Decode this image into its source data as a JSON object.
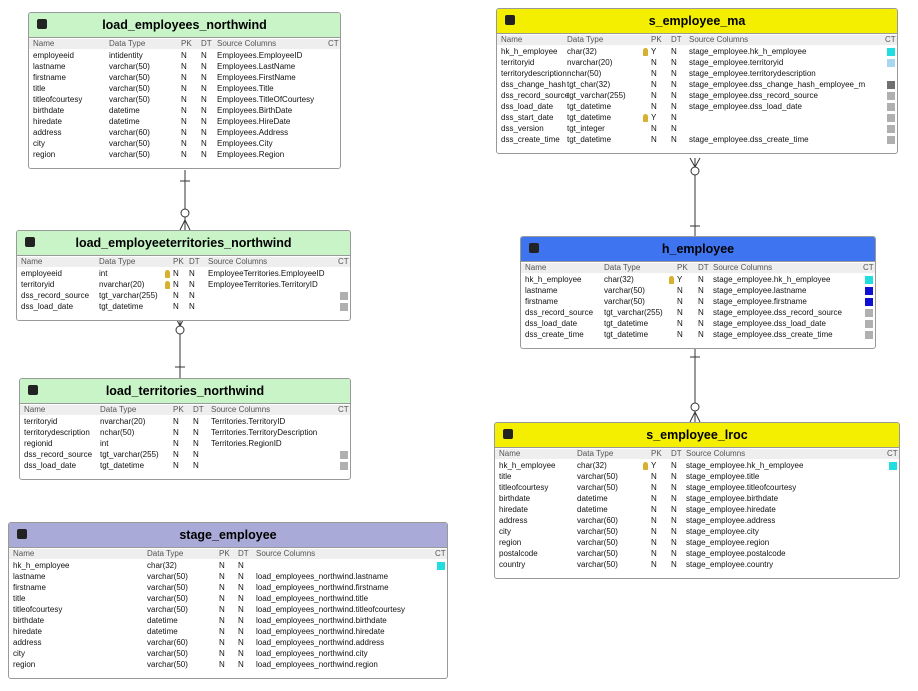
{
  "headers": [
    "Name",
    "Data Type",
    "PK",
    "DT",
    "Source Columns",
    "CT"
  ],
  "tables": [
    {
      "title": "load_employees_northwind",
      "color": "#c8f4c8",
      "rows": [
        {
          "name": "employeeid",
          "type": "intidentity",
          "pk": "N",
          "dt": "N",
          "source": "Employees.EmployeeID"
        },
        {
          "name": "lastname",
          "type": "varchar(50)",
          "pk": "N",
          "dt": "N",
          "source": "Employees.LastName"
        },
        {
          "name": "firstname",
          "type": "varchar(50)",
          "pk": "N",
          "dt": "N",
          "source": "Employees.FirstName"
        },
        {
          "name": "title",
          "type": "varchar(50)",
          "pk": "N",
          "dt": "N",
          "source": "Employees.Title"
        },
        {
          "name": "titleofcourtesy",
          "type": "varchar(50)",
          "pk": "N",
          "dt": "N",
          "source": "Employees.TitleOfCourtesy"
        },
        {
          "name": "birthdate",
          "type": "datetime",
          "pk": "N",
          "dt": "N",
          "source": "Employees.BirthDate"
        },
        {
          "name": "hiredate",
          "type": "datetime",
          "pk": "N",
          "dt": "N",
          "source": "Employees.HireDate"
        },
        {
          "name": "address",
          "type": "varchar(60)",
          "pk": "N",
          "dt": "N",
          "source": "Employees.Address"
        },
        {
          "name": "city",
          "type": "varchar(50)",
          "pk": "N",
          "dt": "N",
          "source": "Employees.City"
        },
        {
          "name": "region",
          "type": "varchar(50)",
          "pk": "N",
          "dt": "N",
          "source": "Employees.Region"
        }
      ]
    },
    {
      "title": "load_employeeterritories_northwind",
      "color": "#c8f4c8",
      "rows": [
        {
          "name": "employeeid",
          "type": "int",
          "pk": "N",
          "dt": "N",
          "source": "EmployeeTerritories.EmployeeID",
          "key": true
        },
        {
          "name": "territoryid",
          "type": "nvarchar(20)",
          "pk": "N",
          "dt": "N",
          "source": "EmployeeTerritories.TerritoryID",
          "key": true
        },
        {
          "name": "dss_record_source",
          "type": "tgt_varchar(255)",
          "pk": "N",
          "dt": "N",
          "ct": "#b0b0b0"
        },
        {
          "name": "dss_load_date",
          "type": "tgt_datetime",
          "pk": "N",
          "dt": "N",
          "ct": "#b0b0b0"
        }
      ]
    },
    {
      "title": "load_territories_northwind",
      "color": "#c8f4c8",
      "rows": [
        {
          "name": "territoryid",
          "type": "nvarchar(20)",
          "pk": "N",
          "dt": "N",
          "source": "Territories.TerritoryID"
        },
        {
          "name": "territorydescription",
          "type": "nchar(50)",
          "pk": "N",
          "dt": "N",
          "source": "Territories.TerritoryDescription"
        },
        {
          "name": "regionid",
          "type": "int",
          "pk": "N",
          "dt": "N",
          "source": "Territories.RegionID"
        },
        {
          "name": "dss_record_source",
          "type": "tgt_varchar(255)",
          "pk": "N",
          "dt": "N",
          "ct": "#b0b0b0"
        },
        {
          "name": "dss_load_date",
          "type": "tgt_datetime",
          "pk": "N",
          "dt": "N",
          "ct": "#b0b0b0"
        }
      ]
    },
    {
      "title": "stage_employee",
      "color": "#aaaad8",
      "rows": [
        {
          "name": "hk_h_employee",
          "type": "char(32)",
          "pk": "N",
          "dt": "N",
          "ct": "#22dde0"
        },
        {
          "name": "lastname",
          "type": "varchar(50)",
          "pk": "N",
          "dt": "N",
          "source": "load_employees_northwind.lastname"
        },
        {
          "name": "firstname",
          "type": "varchar(50)",
          "pk": "N",
          "dt": "N",
          "source": "load_employees_northwind.firstname"
        },
        {
          "name": "title",
          "type": "varchar(50)",
          "pk": "N",
          "dt": "N",
          "source": "load_employees_northwind.title"
        },
        {
          "name": "titleofcourtesy",
          "type": "varchar(50)",
          "pk": "N",
          "dt": "N",
          "source": "load_employees_northwind.titleofcourtesy"
        },
        {
          "name": "birthdate",
          "type": "datetime",
          "pk": "N",
          "dt": "N",
          "source": "load_employees_northwind.birthdate"
        },
        {
          "name": "hiredate",
          "type": "datetime",
          "pk": "N",
          "dt": "N",
          "source": "load_employees_northwind.hiredate"
        },
        {
          "name": "address",
          "type": "varchar(60)",
          "pk": "N",
          "dt": "N",
          "source": "load_employees_northwind.address"
        },
        {
          "name": "city",
          "type": "varchar(50)",
          "pk": "N",
          "dt": "N",
          "source": "load_employees_northwind.city"
        },
        {
          "name": "region",
          "type": "varchar(50)",
          "pk": "N",
          "dt": "N",
          "source": "load_employees_northwind.region"
        }
      ]
    },
    {
      "title": "s_employee_ma",
      "color": "#f4ee00",
      "rows": [
        {
          "name": "hk_h_employee",
          "type": "char(32)",
          "pk": "Y",
          "dt": "N",
          "source": "stage_employee.hk_h_employee",
          "key": true,
          "ct": "#22dde0"
        },
        {
          "name": "territoryid",
          "type": "nvarchar(20)",
          "pk": "N",
          "dt": "N",
          "source": "stage_employee.territoryid",
          "ct": "#a8d8f0"
        },
        {
          "name": "territorydescription",
          "type": "nchar(50)",
          "pk": "N",
          "dt": "N",
          "source": "stage_employee.territorydescription"
        },
        {
          "name": "dss_change_hash",
          "type": "tgt_char(32)",
          "pk": "N",
          "dt": "N",
          "source": "stage_employee.dss_change_hash_employee_m",
          "ct": "#707070"
        },
        {
          "name": "dss_record_source",
          "type": "tgt_varchar(255)",
          "pk": "N",
          "dt": "N",
          "source": "stage_employee.dss_record_source",
          "ct": "#b0b0b0"
        },
        {
          "name": "dss_load_date",
          "type": "tgt_datetime",
          "pk": "N",
          "dt": "N",
          "source": "stage_employee.dss_load_date",
          "ct": "#b0b0b0"
        },
        {
          "name": "dss_start_date",
          "type": "tgt_datetime",
          "pk": "Y",
          "dt": "N",
          "key": true,
          "ct": "#b0b0b0"
        },
        {
          "name": "dss_version",
          "type": "tgt_integer",
          "pk": "N",
          "dt": "N",
          "ct": "#b0b0b0"
        },
        {
          "name": "dss_create_time",
          "type": "tgt_datetime",
          "pk": "N",
          "dt": "N",
          "source": "stage_employee.dss_create_time",
          "ct": "#b0b0b0"
        }
      ]
    },
    {
      "title": "h_employee",
      "color": "#3f74f0",
      "rows": [
        {
          "name": "hk_h_employee",
          "type": "char(32)",
          "pk": "Y",
          "dt": "N",
          "source": "stage_employee.hk_h_employee",
          "key": true,
          "ct": "#22dde0"
        },
        {
          "name": "lastname",
          "type": "varchar(50)",
          "pk": "N",
          "dt": "N",
          "source": "stage_employee.lastname",
          "ct": "#1010d0"
        },
        {
          "name": "firstname",
          "type": "varchar(50)",
          "pk": "N",
          "dt": "N",
          "source": "stage_employee.firstname",
          "ct": "#1010d0"
        },
        {
          "name": "dss_record_source",
          "type": "tgt_varchar(255)",
          "pk": "N",
          "dt": "N",
          "source": "stage_employee.dss_record_source",
          "ct": "#b0b0b0"
        },
        {
          "name": "dss_load_date",
          "type": "tgt_datetime",
          "pk": "N",
          "dt": "N",
          "source": "stage_employee.dss_load_date",
          "ct": "#b0b0b0"
        },
        {
          "name": "dss_create_time",
          "type": "tgt_datetime",
          "pk": "N",
          "dt": "N",
          "source": "stage_employee.dss_create_time",
          "ct": "#b0b0b0"
        }
      ]
    },
    {
      "title": "s_employee_lroc",
      "color": "#f4ee00",
      "rows": [
        {
          "name": "hk_h_employee",
          "type": "char(32)",
          "pk": "Y",
          "dt": "N",
          "source": "stage_employee.hk_h_employee",
          "key": true,
          "ct": "#22dde0"
        },
        {
          "name": "title",
          "type": "varchar(50)",
          "pk": "N",
          "dt": "N",
          "source": "stage_employee.title"
        },
        {
          "name": "titleofcourtesy",
          "type": "varchar(50)",
          "pk": "N",
          "dt": "N",
          "source": "stage_employee.titleofcourtesy"
        },
        {
          "name": "birthdate",
          "type": "datetime",
          "pk": "N",
          "dt": "N",
          "source": "stage_employee.birthdate"
        },
        {
          "name": "hiredate",
          "type": "datetime",
          "pk": "N",
          "dt": "N",
          "source": "stage_employee.hiredate"
        },
        {
          "name": "address",
          "type": "varchar(60)",
          "pk": "N",
          "dt": "N",
          "source": "stage_employee.address"
        },
        {
          "name": "city",
          "type": "varchar(50)",
          "pk": "N",
          "dt": "N",
          "source": "stage_employee.city"
        },
        {
          "name": "region",
          "type": "varchar(50)",
          "pk": "N",
          "dt": "N",
          "source": "stage_employee.region"
        },
        {
          "name": "postalcode",
          "type": "varchar(50)",
          "pk": "N",
          "dt": "N",
          "source": "stage_employee.postalcode"
        },
        {
          "name": "country",
          "type": "varchar(50)",
          "pk": "N",
          "dt": "N",
          "source": "stage_employee.country"
        }
      ]
    }
  ]
}
